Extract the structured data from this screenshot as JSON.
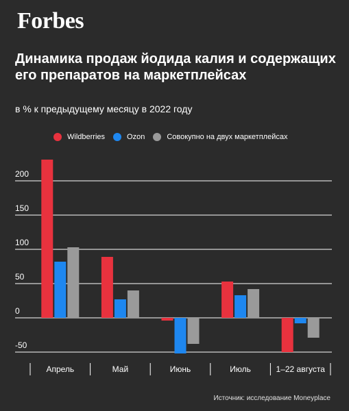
{
  "brand": "Forbes",
  "title": "Динамика продаж йодида калия и содержащих его препаратов на маркетплейсах",
  "subtitle": "в % к предыдущему месяцу в 2022 году",
  "source": "Источник: исследование Moneyplace",
  "colors": {
    "wildberries": "#e8323e",
    "ozon": "#1e87f0",
    "total": "#9a9a9a",
    "background": "#2b2b2b",
    "grid": "#ffffff"
  },
  "chart_data": {
    "type": "bar",
    "categories": [
      "Апрель",
      "Май",
      "Июнь",
      "Июль",
      "1–22 августа"
    ],
    "series": [
      {
        "name": "Wildberries",
        "values": [
          231,
          89,
          -4,
          53,
          -50
        ]
      },
      {
        "name": "Ozon",
        "values": [
          82,
          27,
          -52,
          33,
          -8
        ]
      },
      {
        "name": "Совокупно на двух маркетплейсах",
        "values": [
          103,
          40,
          -38,
          42,
          -29
        ]
      }
    ],
    "yticks": [
      200,
      150,
      100,
      50,
      0,
      -50
    ],
    "ylim": [
      -50,
      231
    ],
    "grid": true,
    "legend_position": "top"
  }
}
